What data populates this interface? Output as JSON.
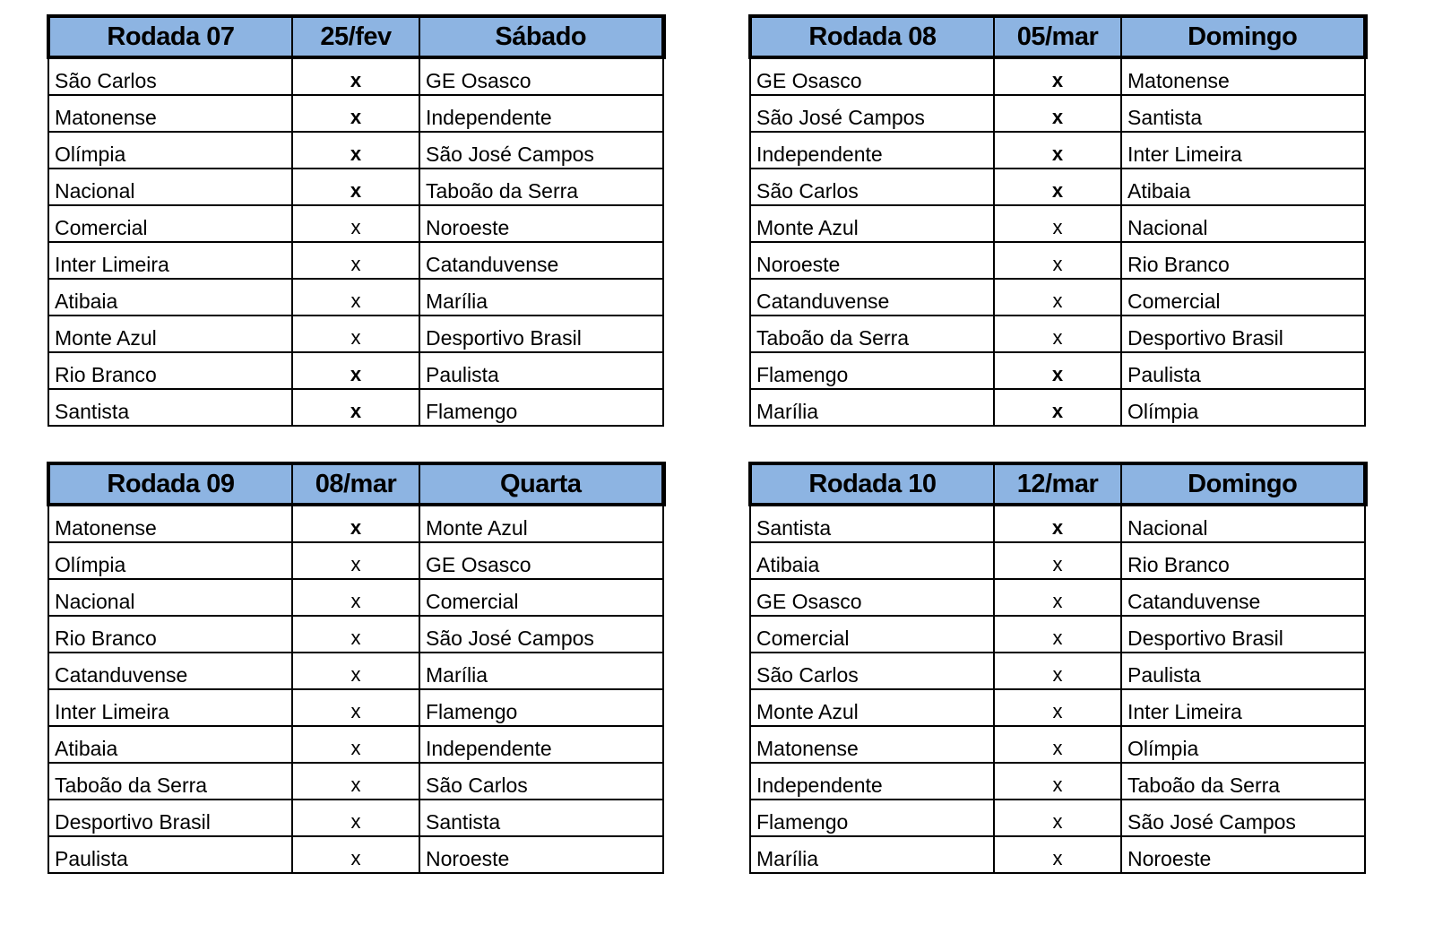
{
  "header_color": "#8db4e2",
  "rounds": [
    {
      "title": "Rodada 07",
      "date": "25/fev",
      "day": "Sábado",
      "matches": [
        [
          "São Carlos",
          "x",
          "GE Osasco",
          true
        ],
        [
          "Matonense",
          "x",
          "Independente",
          true
        ],
        [
          "Olímpia",
          "x",
          "São José Campos",
          true
        ],
        [
          "Nacional",
          "x",
          "Taboão da Serra",
          true
        ],
        [
          "Comercial",
          "x",
          "Noroeste",
          false
        ],
        [
          "Inter Limeira",
          "x",
          "Catanduvense",
          false
        ],
        [
          "Atibaia",
          "x",
          "Marília",
          false
        ],
        [
          "Monte Azul",
          "x",
          "Desportivo Brasil",
          false
        ],
        [
          "Rio Branco",
          "x",
          "Paulista",
          true
        ],
        [
          "Santista",
          "x",
          "Flamengo",
          true
        ]
      ]
    },
    {
      "title": "Rodada 08",
      "date": "05/mar",
      "day": "Domingo",
      "matches": [
        [
          "GE Osasco",
          "x",
          "Matonense",
          true
        ],
        [
          "São José Campos",
          "x",
          "Santista",
          true
        ],
        [
          "Independente",
          "x",
          "Inter Limeira",
          true
        ],
        [
          "São Carlos",
          "x",
          "Atibaia",
          true
        ],
        [
          "Monte Azul",
          "x",
          "Nacional",
          false
        ],
        [
          "Noroeste",
          "x",
          "Rio Branco",
          false
        ],
        [
          "Catanduvense",
          "x",
          "Comercial",
          false
        ],
        [
          "Taboão da Serra",
          "x",
          "Desportivo Brasil",
          false
        ],
        [
          "Flamengo",
          "x",
          "Paulista",
          true
        ],
        [
          "Marília",
          "x",
          "Olímpia",
          true
        ]
      ]
    },
    {
      "title": "Rodada 09",
      "date": "08/mar",
      "day": "Quarta",
      "matches": [
        [
          "Matonense",
          "x",
          "Monte Azul",
          true
        ],
        [
          "Olímpia",
          "x",
          "GE Osasco",
          false
        ],
        [
          "Nacional",
          "x",
          "Comercial",
          false
        ],
        [
          "Rio Branco",
          "x",
          "São José Campos",
          false
        ],
        [
          "Catanduvense",
          "x",
          "Marília",
          false
        ],
        [
          "Inter Limeira",
          "x",
          "Flamengo",
          false
        ],
        [
          "Atibaia",
          "x",
          "Independente",
          false
        ],
        [
          "Taboão da Serra",
          "x",
          "São Carlos",
          false
        ],
        [
          "Desportivo Brasil",
          "x",
          "Santista",
          false
        ],
        [
          "Paulista",
          "x",
          "Noroeste",
          false
        ]
      ]
    },
    {
      "title": "Rodada 10",
      "date": "12/mar",
      "day": "Domingo",
      "matches": [
        [
          "Santista",
          "x",
          "Nacional",
          true
        ],
        [
          "Atibaia",
          "x",
          "Rio Branco",
          false
        ],
        [
          "GE Osasco",
          "x",
          "Catanduvense",
          false
        ],
        [
          "Comercial",
          "x",
          "Desportivo Brasil",
          false
        ],
        [
          "São Carlos",
          "x",
          "Paulista",
          false
        ],
        [
          "Monte Azul",
          "x",
          "Inter Limeira",
          false
        ],
        [
          "Matonense",
          "x",
          "Olímpia",
          false
        ],
        [
          "Independente",
          "x",
          "Taboão da Serra",
          false
        ],
        [
          "Flamengo",
          "x",
          "São José Campos",
          false
        ],
        [
          "Marília",
          "x",
          "Noroeste",
          false
        ]
      ]
    }
  ]
}
